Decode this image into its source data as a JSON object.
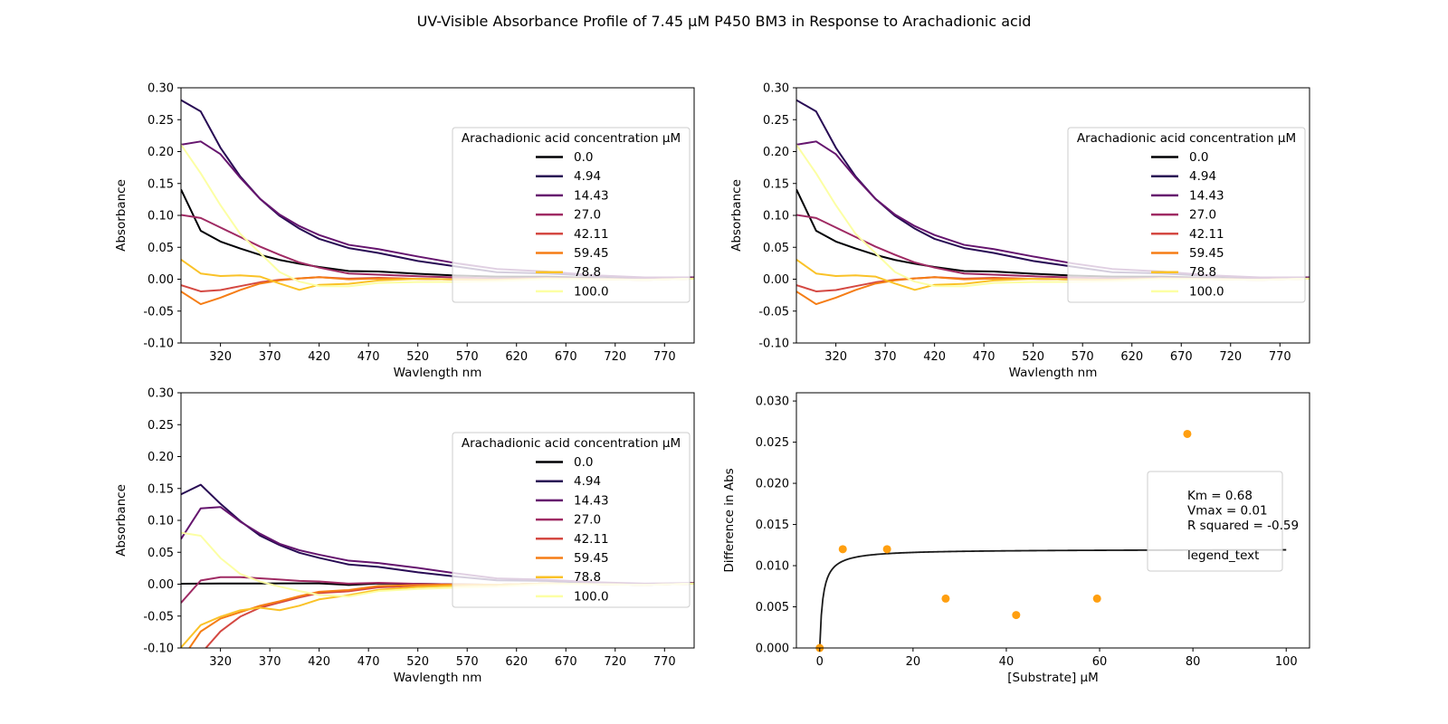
{
  "figure": {
    "title": "UV-Visible Absorbance Profile of 7.45 µM P450 BM3 in Response to Arachadionic acid"
  },
  "colors": {
    "0.0": "#000004",
    "4.94": "#280b54",
    "14.43": "#65156e",
    "27.0": "#9f2a63",
    "42.11": "#d44842",
    "59.45": "#f57d15",
    "78.8": "#fac228",
    "100.0": "#fcffa4",
    "scatter": "#ff9f10",
    "fit": "#1a1a1a"
  },
  "chart_data": [
    {
      "type": "line",
      "panel": "top-left",
      "xlabel": "Wavlength nm",
      "ylabel": "Absorbance",
      "xlim": [
        280,
        800
      ],
      "ylim": [
        -0.1,
        0.3
      ],
      "xticks": [
        320,
        370,
        420,
        470,
        520,
        570,
        620,
        670,
        720,
        770
      ],
      "yticks": [
        -0.1,
        -0.05,
        0.0,
        0.05,
        0.1,
        0.15,
        0.2,
        0.25,
        0.3
      ],
      "grid": false,
      "legend": {
        "title": "Arachadionic acid concentration µM",
        "placement": "right",
        "entries": [
          "0.0",
          "4.94",
          "14.43",
          "27.0",
          "42.11",
          "59.45",
          "78.8",
          "100.0"
        ]
      },
      "x": [
        280,
        300,
        320,
        340,
        360,
        380,
        400,
        420,
        450,
        480,
        520,
        560,
        600,
        650,
        700,
        750,
        800
      ],
      "series": [
        {
          "name": "0.0",
          "values": [
            0.14,
            0.075,
            0.058,
            0.047,
            0.037,
            0.029,
            0.023,
            0.018,
            0.014,
            0.011,
            0.008,
            0.006,
            0.005,
            0.003,
            0.002,
            0.001,
            0.0
          ]
        },
        {
          "name": "4.94",
          "values": [
            0.28,
            0.262,
            0.205,
            0.16,
            0.125,
            0.098,
            0.078,
            0.062,
            0.05,
            0.04,
            0.028,
            0.02,
            0.012,
            0.008,
            0.005,
            0.003,
            0.002
          ]
        },
        {
          "name": "14.43",
          "values": [
            0.21,
            0.215,
            0.195,
            0.158,
            0.125,
            0.1,
            0.082,
            0.068,
            0.055,
            0.046,
            0.035,
            0.025,
            0.017,
            0.011,
            0.006,
            0.004,
            0.002
          ]
        },
        {
          "name": "27.0",
          "values": [
            0.1,
            0.095,
            0.08,
            0.065,
            0.05,
            0.037,
            0.025,
            0.017,
            0.01,
            0.006,
            0.004,
            0.003,
            0.002,
            0.001,
            0.001,
            0.001,
            0.0
          ]
        },
        {
          "name": "42.11",
          "values": [
            -0.01,
            -0.02,
            -0.018,
            -0.012,
            -0.006,
            -0.002,
            0.0,
            0.002,
            0.002,
            0.001,
            0.0,
            0.0,
            0.0,
            0.0,
            0.0,
            0.0,
            0.0
          ]
        },
        {
          "name": "59.45",
          "values": [
            -0.02,
            -0.04,
            -0.03,
            -0.018,
            -0.008,
            -0.003,
            0.0,
            0.002,
            0.001,
            0.0,
            0.0,
            0.0,
            0.0,
            0.0,
            0.0,
            0.0,
            0.0
          ]
        },
        {
          "name": "78.8",
          "values": [
            0.03,
            0.008,
            0.004,
            0.005,
            0.003,
            -0.008,
            -0.018,
            -0.01,
            -0.006,
            -0.003,
            0.0,
            0.0,
            0.0,
            0.0,
            0.0,
            0.0,
            0.0
          ]
        },
        {
          "name": "100.0",
          "values": [
            0.21,
            0.165,
            0.115,
            0.07,
            0.04,
            0.01,
            -0.005,
            -0.012,
            -0.01,
            -0.007,
            -0.005,
            -0.004,
            -0.002,
            -0.001,
            0.0,
            0.0,
            0.0
          ]
        }
      ]
    },
    {
      "type": "line",
      "panel": "top-right",
      "xlabel": "Wavlength nm",
      "ylabel": "Absorbance",
      "xlim": [
        280,
        800
      ],
      "ylim": [
        -0.1,
        0.3
      ],
      "xticks": [
        320,
        370,
        420,
        470,
        520,
        570,
        620,
        670,
        720,
        770
      ],
      "yticks": [
        -0.1,
        -0.05,
        0.0,
        0.05,
        0.1,
        0.15,
        0.2,
        0.25,
        0.3
      ],
      "grid": false,
      "legend": {
        "title": "Arachadionic acid concentration µM",
        "placement": "right",
        "entries": [
          "0.0",
          "4.94",
          "14.43",
          "27.0",
          "42.11",
          "59.45",
          "78.8",
          "100.0"
        ]
      },
      "x": [
        280,
        300,
        320,
        340,
        360,
        380,
        400,
        420,
        450,
        480,
        520,
        560,
        600,
        650,
        700,
        750,
        800
      ],
      "series": [
        {
          "name": "0.0",
          "values": [
            0.14,
            0.075,
            0.058,
            0.047,
            0.037,
            0.029,
            0.023,
            0.018,
            0.014,
            0.011,
            0.008,
            0.006,
            0.005,
            0.003,
            0.002,
            0.001,
            0.0
          ]
        },
        {
          "name": "4.94",
          "values": [
            0.28,
            0.262,
            0.205,
            0.16,
            0.125,
            0.098,
            0.078,
            0.062,
            0.05,
            0.04,
            0.028,
            0.02,
            0.012,
            0.008,
            0.005,
            0.003,
            0.002
          ]
        },
        {
          "name": "14.43",
          "values": [
            0.21,
            0.215,
            0.195,
            0.158,
            0.125,
            0.1,
            0.082,
            0.068,
            0.055,
            0.046,
            0.035,
            0.025,
            0.017,
            0.011,
            0.006,
            0.004,
            0.002
          ]
        },
        {
          "name": "27.0",
          "values": [
            0.1,
            0.095,
            0.08,
            0.065,
            0.05,
            0.037,
            0.025,
            0.017,
            0.01,
            0.006,
            0.004,
            0.003,
            0.002,
            0.001,
            0.001,
            0.001,
            0.0
          ]
        },
        {
          "name": "42.11",
          "values": [
            -0.01,
            -0.02,
            -0.018,
            -0.012,
            -0.006,
            -0.002,
            0.0,
            0.002,
            0.002,
            0.001,
            0.0,
            0.0,
            0.0,
            0.0,
            0.0,
            0.0,
            0.0
          ]
        },
        {
          "name": "59.45",
          "values": [
            -0.02,
            -0.04,
            -0.03,
            -0.018,
            -0.008,
            -0.003,
            0.0,
            0.002,
            0.001,
            0.0,
            0.0,
            0.0,
            0.0,
            0.0,
            0.0,
            0.0,
            0.0
          ]
        },
        {
          "name": "78.8",
          "values": [
            0.03,
            0.008,
            0.004,
            0.005,
            0.003,
            -0.008,
            -0.018,
            -0.01,
            -0.006,
            -0.003,
            0.0,
            0.0,
            0.0,
            0.0,
            0.0,
            0.0,
            0.0
          ]
        },
        {
          "name": "100.0",
          "values": [
            0.21,
            0.165,
            0.115,
            0.07,
            0.04,
            0.01,
            -0.005,
            -0.012,
            -0.01,
            -0.007,
            -0.005,
            -0.004,
            -0.002,
            -0.001,
            0.0,
            0.0,
            0.0
          ]
        }
      ]
    },
    {
      "type": "line",
      "panel": "bottom-left",
      "xlabel": "Wavlength nm",
      "ylabel": "Absorbance",
      "xlim": [
        280,
        800
      ],
      "ylim": [
        -0.1,
        0.3
      ],
      "xticks": [
        320,
        370,
        420,
        470,
        520,
        570,
        620,
        670,
        720,
        770
      ],
      "yticks": [
        -0.1,
        -0.05,
        0.0,
        0.05,
        0.1,
        0.15,
        0.2,
        0.25,
        0.3
      ],
      "grid": false,
      "legend": {
        "title": "Arachadionic acid concentration µM",
        "placement": "right",
        "entries": [
          "0.0",
          "4.94",
          "14.43",
          "27.0",
          "42.11",
          "59.45",
          "78.8",
          "100.0"
        ]
      },
      "x": [
        280,
        300,
        320,
        340,
        360,
        380,
        400,
        420,
        450,
        480,
        520,
        560,
        600,
        650,
        700,
        750,
        800
      ],
      "series": [
        {
          "name": "0.0",
          "values": [
            0.0,
            0.0,
            0.0,
            0.0,
            0.0,
            0.0,
            0.0,
            0.0,
            0.0,
            0.0,
            0.0,
            0.0,
            0.0,
            0.0,
            0.0,
            0.0,
            0.0
          ]
        },
        {
          "name": "4.94",
          "values": [
            0.14,
            0.155,
            0.125,
            0.098,
            0.075,
            0.06,
            0.048,
            0.04,
            0.032,
            0.026,
            0.018,
            0.012,
            0.007,
            0.004,
            0.002,
            0.001,
            0.0
          ]
        },
        {
          "name": "14.43",
          "values": [
            0.07,
            0.118,
            0.12,
            0.097,
            0.078,
            0.062,
            0.052,
            0.045,
            0.038,
            0.032,
            0.025,
            0.017,
            0.01,
            0.006,
            0.003,
            0.002,
            0.001
          ]
        },
        {
          "name": "27.0",
          "values": [
            -0.03,
            0.005,
            0.01,
            0.01,
            0.008,
            0.006,
            0.004,
            0.003,
            0.002,
            0.001,
            0.0,
            0.0,
            0.0,
            0.0,
            0.0,
            0.0,
            0.0
          ]
        },
        {
          "name": "42.11",
          "values": [
            -0.16,
            -0.11,
            -0.075,
            -0.052,
            -0.038,
            -0.03,
            -0.022,
            -0.015,
            -0.01,
            -0.006,
            -0.003,
            -0.001,
            0.0,
            0.0,
            0.0,
            0.0,
            0.0
          ]
        },
        {
          "name": "59.45",
          "values": [
            -0.12,
            -0.075,
            -0.055,
            -0.045,
            -0.035,
            -0.028,
            -0.02,
            -0.013,
            -0.008,
            -0.004,
            -0.002,
            0.0,
            0.0,
            0.0,
            0.0,
            0.0,
            0.0
          ]
        },
        {
          "name": "78.8",
          "values": [
            -0.1,
            -0.065,
            -0.052,
            -0.042,
            -0.038,
            -0.042,
            -0.035,
            -0.025,
            -0.016,
            -0.01,
            -0.005,
            -0.002,
            0.0,
            0.0,
            0.0,
            0.0,
            0.0
          ]
        },
        {
          "name": "100.0",
          "values": [
            0.08,
            0.075,
            0.04,
            0.015,
            0.003,
            -0.005,
            -0.012,
            -0.018,
            -0.018,
            -0.012,
            -0.008,
            -0.005,
            -0.003,
            -0.001,
            0.0,
            0.0,
            0.0
          ]
        }
      ]
    },
    {
      "type": "scatter",
      "panel": "bottom-right",
      "xlabel": "[Substrate] µM",
      "ylabel": "Difference in Abs",
      "xlim": [
        -5,
        105
      ],
      "ylim": [
        0.0,
        0.031
      ],
      "xticks": [
        0,
        20,
        40,
        60,
        80,
        100
      ],
      "yticks": [
        0.0,
        0.005,
        0.01,
        0.015,
        0.02,
        0.025,
        0.03
      ],
      "grid": false,
      "points": {
        "x": [
          0.0,
          4.94,
          14.43,
          27.0,
          42.11,
          59.45,
          78.8
        ],
        "y": [
          0.0,
          0.012,
          0.012,
          0.006,
          0.004,
          0.006,
          0.026
        ]
      },
      "fit": {
        "type": "michaelis-menten",
        "km": 0.68,
        "vmax": 0.012,
        "x_range": [
          0,
          100
        ]
      },
      "legend": {
        "placement": "right",
        "lines": [
          "Km = 0.68",
          "Vmax = 0.01",
          "R squared = -0.59",
          "",
          "legend_text"
        ]
      }
    }
  ]
}
